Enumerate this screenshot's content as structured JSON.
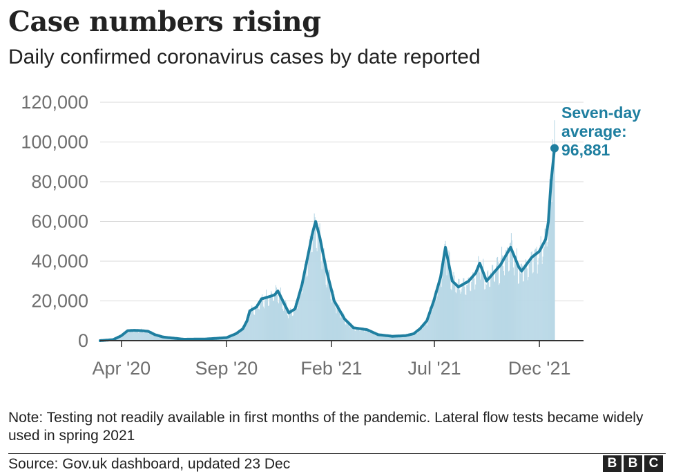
{
  "header": {
    "title": "Case numbers rising",
    "subtitle": "Daily confirmed coronavirus cases by date reported"
  },
  "note": "Note: Testing not readily available in first months of the pandemic. Lateral flow tests became widely used in spring 2021",
  "source": "Source: Gov.uk dashboard, updated 23 Dec",
  "logo": [
    "B",
    "B",
    "C"
  ],
  "colors": {
    "line": "#1f7fa0",
    "bars": "#b9d8e6",
    "grid": "#d9d9d9",
    "axis": "#333333",
    "tick_text": "#6f6f6f",
    "annotation": "#1f7fa0"
  },
  "chart_data": {
    "type": "area",
    "x_type": "date",
    "x_start": "2020-03-01",
    "x_end": "2021-12-23",
    "ylim": [
      0,
      120000
    ],
    "yticks": [
      0,
      20000,
      40000,
      60000,
      80000,
      100000,
      120000
    ],
    "ytick_labels": [
      "0",
      "20,000",
      "40,000",
      "60,000",
      "80,000",
      "100,000",
      "120,000"
    ],
    "xticks": [
      {
        "date": "2020-04-01",
        "label": "Apr '20"
      },
      {
        "date": "2020-09-01",
        "label": "Sep '20"
      },
      {
        "date": "2021-02-01",
        "label": "Feb '21"
      },
      {
        "date": "2021-07-01",
        "label": "Jul '21"
      },
      {
        "date": "2021-12-01",
        "label": "Dec '21"
      }
    ],
    "grid": true,
    "series": [
      {
        "name": "Seven-day average",
        "style": "line",
        "points": [
          [
            "2020-03-01",
            0
          ],
          [
            "2020-03-20",
            500
          ],
          [
            "2020-04-01",
            2500
          ],
          [
            "2020-04-10",
            5000
          ],
          [
            "2020-04-20",
            5200
          ],
          [
            "2020-05-01",
            5000
          ],
          [
            "2020-05-10",
            4700
          ],
          [
            "2020-05-20",
            3000
          ],
          [
            "2020-06-01",
            1800
          ],
          [
            "2020-07-01",
            700
          ],
          [
            "2020-08-01",
            800
          ],
          [
            "2020-09-01",
            1500
          ],
          [
            "2020-09-15",
            3500
          ],
          [
            "2020-09-25",
            6000
          ],
          [
            "2020-10-01",
            10000
          ],
          [
            "2020-10-05",
            15000
          ],
          [
            "2020-10-15",
            17000
          ],
          [
            "2020-10-22",
            21000
          ],
          [
            "2020-11-01",
            22000
          ],
          [
            "2020-11-10",
            23000
          ],
          [
            "2020-11-15",
            25000
          ],
          [
            "2020-11-25",
            18000
          ],
          [
            "2020-12-01",
            14000
          ],
          [
            "2020-12-10",
            16000
          ],
          [
            "2020-12-20",
            28000
          ],
          [
            "2020-12-30",
            45000
          ],
          [
            "2021-01-05",
            55000
          ],
          [
            "2021-01-09",
            60000
          ],
          [
            "2021-01-15",
            52000
          ],
          [
            "2021-01-25",
            35000
          ],
          [
            "2021-02-05",
            20000
          ],
          [
            "2021-02-20",
            11000
          ],
          [
            "2021-03-05",
            6500
          ],
          [
            "2021-03-25",
            5500
          ],
          [
            "2021-04-10",
            3000
          ],
          [
            "2021-05-01",
            2200
          ],
          [
            "2021-05-20",
            2500
          ],
          [
            "2021-06-01",
            3500
          ],
          [
            "2021-06-10",
            6000
          ],
          [
            "2021-06-20",
            10000
          ],
          [
            "2021-06-30",
            20000
          ],
          [
            "2021-07-10",
            32000
          ],
          [
            "2021-07-17",
            47000
          ],
          [
            "2021-07-27",
            30000
          ],
          [
            "2021-08-05",
            27000
          ],
          [
            "2021-08-20",
            30000
          ],
          [
            "2021-08-30",
            34000
          ],
          [
            "2021-09-05",
            39000
          ],
          [
            "2021-09-15",
            30000
          ],
          [
            "2021-09-25",
            34000
          ],
          [
            "2021-10-05",
            38000
          ],
          [
            "2021-10-20",
            47000
          ],
          [
            "2021-11-01",
            37000
          ],
          [
            "2021-11-05",
            35000
          ],
          [
            "2021-11-20",
            42000
          ],
          [
            "2021-12-01",
            45000
          ],
          [
            "2021-12-10",
            51000
          ],
          [
            "2021-12-14",
            60000
          ],
          [
            "2021-12-18",
            80000
          ],
          [
            "2021-12-23",
            96881
          ]
        ]
      },
      {
        "name": "Daily cases",
        "style": "bars",
        "points": []
      }
    ],
    "annotation": {
      "lines": [
        "Seven-day",
        "average:",
        "96,881"
      ],
      "date": "2021-12-23",
      "value": 96881
    }
  }
}
